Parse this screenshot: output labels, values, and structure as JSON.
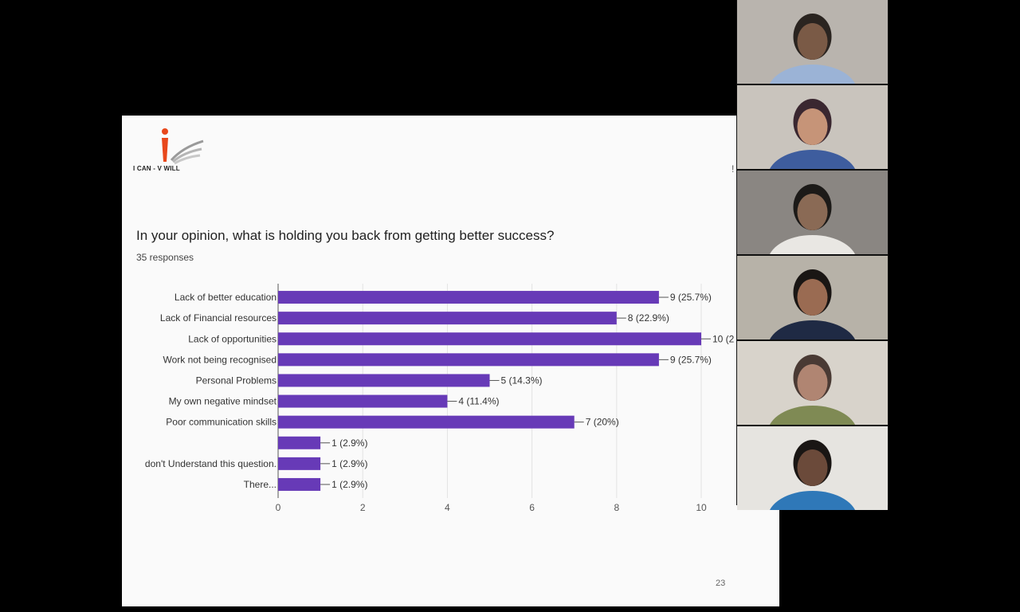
{
  "slide": {
    "logo_text": "I CAN - V WILL",
    "question": "In your opinion, what is holding you back from getting better success?",
    "responses": "35 responses",
    "page_number": "23",
    "edge_mark": "!"
  },
  "chart_data": {
    "type": "bar",
    "orientation": "horizontal",
    "categories": [
      "Lack of better education",
      "Lack of Financial resources",
      "Lack of opportunities",
      "Work not being recognised",
      "Personal Problems",
      "My own negative mindset",
      "Poor communication skills",
      "",
      "don't Understand this question.",
      "There..."
    ],
    "values": [
      9,
      8,
      10,
      9,
      5,
      4,
      7,
      1,
      1,
      1
    ],
    "data_labels": [
      "9 (25.7%)",
      "8 (22.9%)",
      "10 (2",
      "9 (25.7%)",
      "5 (14.3%)",
      "4 (11.4%)",
      "7 (20%)",
      "1 (2.9%)",
      "1 (2.9%)",
      "1 (2.9%)"
    ],
    "xlim": [
      0,
      10
    ],
    "xticks": [
      "0",
      "2",
      "4",
      "6",
      "8",
      "10"
    ],
    "bar_color": "#673ab7",
    "grid": true
  },
  "participants": [
    {
      "label": "participant-1",
      "bg": "#b9b4ae",
      "shirt": "#9bb3d6",
      "skin": "#7a5a46",
      "hair": "#2a2420"
    },
    {
      "label": "participant-2",
      "bg": "#c9c4bd",
      "shirt": "#3e5d9e",
      "skin": "#c69478",
      "hair": "#3a2730"
    },
    {
      "label": "participant-3",
      "bg": "#8a8682",
      "shirt": "#e9e7e3",
      "skin": "#8a6a55",
      "hair": "#1c1a18"
    },
    {
      "label": "participant-4",
      "bg": "#b7b2a8",
      "shirt": "#1f2a44",
      "skin": "#9a6b52",
      "hair": "#1a1614"
    },
    {
      "label": "participant-5",
      "bg": "#d8d3cb",
      "shirt": "#7f8a54",
      "skin": "#b08572",
      "hair": "#4a3a34"
    },
    {
      "label": "participant-6",
      "bg": "#e6e4e0",
      "shirt": "#2f78b8",
      "skin": "#6b4a3a",
      "hair": "#1a1614"
    }
  ]
}
